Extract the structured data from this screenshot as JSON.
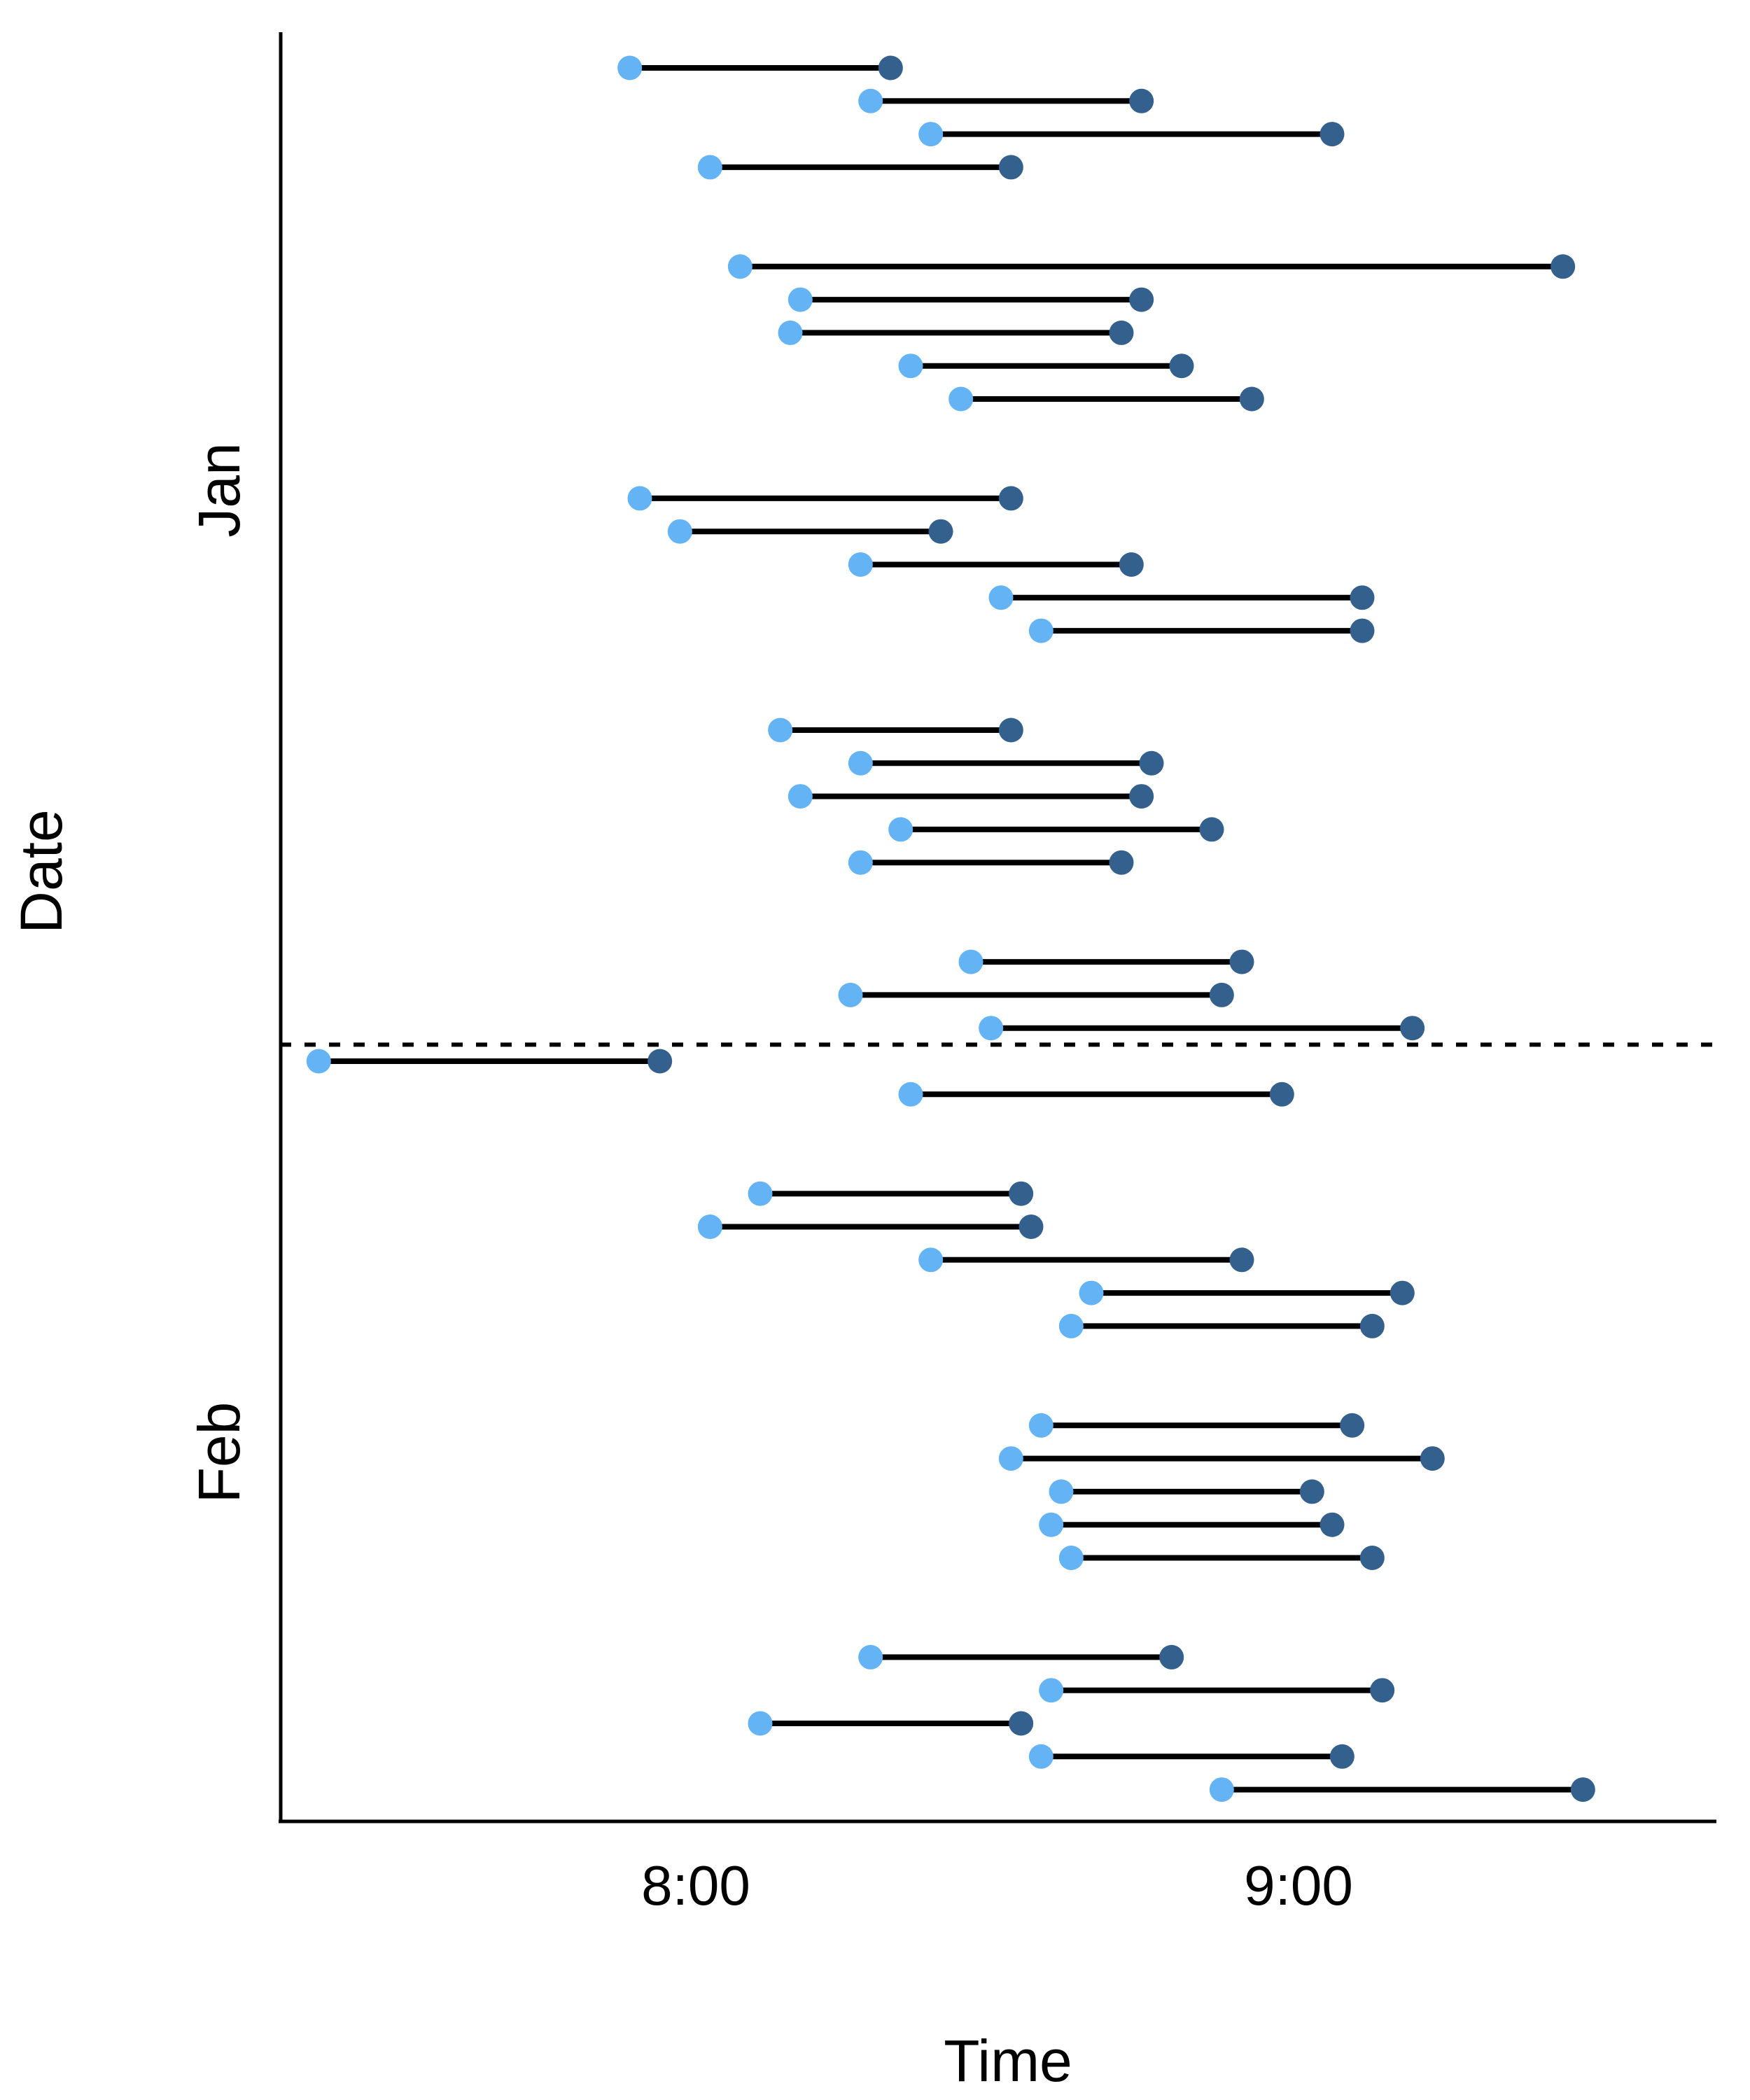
{
  "chart_data": {
    "type": "dumbbell",
    "title": "",
    "xlabel": "Time",
    "ylabel": "Date",
    "x_ticks": [
      {
        "label": "8:00",
        "time": "8:00"
      },
      {
        "label": "9:00",
        "time": "9:00"
      }
    ],
    "x_domain": [
      "7:18",
      "9:41"
    ],
    "grid": "off",
    "legend": "none",
    "style": {
      "start_dot_color": "#64B3F4",
      "end_dot_color": "#33608C",
      "connector_color": "#000000",
      "axis_color": "#000000",
      "divider_style": "dotted"
    },
    "y_groups": [
      {
        "label": "Jan"
      },
      {
        "label": "Feb"
      }
    ],
    "divider": {
      "between": [
        "Jan",
        "Feb"
      ],
      "style": "dotted"
    },
    "rows": [
      {
        "month": "Jan",
        "day": 0,
        "start": "7:53",
        "end": "8:19"
      },
      {
        "month": "Jan",
        "day": 1,
        "start": "8:17",
        "end": "8:44"
      },
      {
        "month": "Jan",
        "day": 2,
        "start": "8:23",
        "end": "9:03"
      },
      {
        "month": "Jan",
        "day": 3,
        "start": "8:01",
        "end": "8:31"
      },
      {
        "month": "Jan",
        "day": 6,
        "start": "8:04",
        "end": "9:26"
      },
      {
        "month": "Jan",
        "day": 7,
        "start": "8:10",
        "end": "8:44"
      },
      {
        "month": "Jan",
        "day": 8,
        "start": "8:09",
        "end": "8:42"
      },
      {
        "month": "Jan",
        "day": 9,
        "start": "8:21",
        "end": "8:48"
      },
      {
        "month": "Jan",
        "day": 10,
        "start": "8:26",
        "end": "8:55"
      },
      {
        "month": "Jan",
        "day": 13,
        "start": "7:54",
        "end": "8:31"
      },
      {
        "month": "Jan",
        "day": 14,
        "start": "7:58",
        "end": "8:24"
      },
      {
        "month": "Jan",
        "day": 15,
        "start": "8:16",
        "end": "8:43"
      },
      {
        "month": "Jan",
        "day": 16,
        "start": "8:30",
        "end": "9:06"
      },
      {
        "month": "Jan",
        "day": 17,
        "start": "8:34",
        "end": "9:06"
      },
      {
        "month": "Jan",
        "day": 20,
        "start": "8:08",
        "end": "8:31"
      },
      {
        "month": "Jan",
        "day": 21,
        "start": "8:16",
        "end": "8:45"
      },
      {
        "month": "Jan",
        "day": 22,
        "start": "8:10",
        "end": "8:44"
      },
      {
        "month": "Jan",
        "day": 23,
        "start": "8:20",
        "end": "8:51"
      },
      {
        "month": "Jan",
        "day": 24,
        "start": "8:16",
        "end": "8:42"
      },
      {
        "month": "Jan",
        "day": 27,
        "start": "8:27",
        "end": "8:54"
      },
      {
        "month": "Jan",
        "day": 28,
        "start": "8:15",
        "end": "8:52"
      },
      {
        "month": "Jan",
        "day": 29,
        "start": "8:29",
        "end": "9:11"
      },
      {
        "month": "Feb",
        "day": 30,
        "start": "7:22",
        "end": "7:56"
      },
      {
        "month": "Feb",
        "day": 31,
        "start": "8:21",
        "end": "8:58"
      },
      {
        "month": "Feb",
        "day": 34,
        "start": "8:06",
        "end": "8:32"
      },
      {
        "month": "Feb",
        "day": 35,
        "start": "8:01",
        "end": "8:33"
      },
      {
        "month": "Feb",
        "day": 36,
        "start": "8:23",
        "end": "8:54"
      },
      {
        "month": "Feb",
        "day": 37,
        "start": "8:39",
        "end": "9:10"
      },
      {
        "month": "Feb",
        "day": 38,
        "start": "8:37",
        "end": "9:07"
      },
      {
        "month": "Feb",
        "day": 41,
        "start": "8:34",
        "end": "9:05"
      },
      {
        "month": "Feb",
        "day": 42,
        "start": "8:31",
        "end": "9:13"
      },
      {
        "month": "Feb",
        "day": 43,
        "start": "8:36",
        "end": "9:01"
      },
      {
        "month": "Feb",
        "day": 44,
        "start": "8:35",
        "end": "9:03"
      },
      {
        "month": "Feb",
        "day": 45,
        "start": "8:37",
        "end": "9:07"
      },
      {
        "month": "Feb",
        "day": 48,
        "start": "8:17",
        "end": "8:47"
      },
      {
        "month": "Feb",
        "day": 49,
        "start": "8:35",
        "end": "9:08"
      },
      {
        "month": "Feb",
        "day": 50,
        "start": "8:06",
        "end": "8:32"
      },
      {
        "month": "Feb",
        "day": 51,
        "start": "8:34",
        "end": "9:04"
      },
      {
        "month": "Feb",
        "day": 52,
        "start": "8:52",
        "end": "9:28"
      }
    ]
  }
}
